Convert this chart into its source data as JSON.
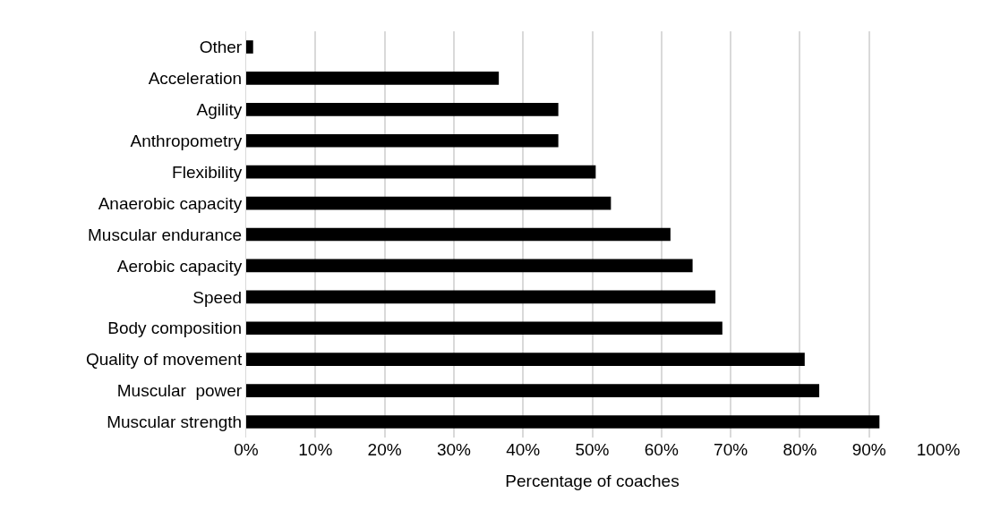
{
  "chart_data": {
    "type": "bar",
    "orientation": "horizontal",
    "xlabel": "Percentage of coaches",
    "categories": [
      "Other",
      "Acceleration",
      "Agility",
      "Anthropometry",
      "Flexibility",
      "Anaerobic capacity",
      "Muscular endurance",
      "Aerobic capacity",
      "Speed",
      "Body composition",
      "Quality of movement",
      "Muscular  power",
      "Muscular strength"
    ],
    "values": [
      1,
      36.5,
      45.1,
      45.1,
      50.5,
      52.7,
      61.3,
      64.5,
      67.8,
      68.8,
      80.7,
      82.8,
      91.5
    ],
    "color": "#000000",
    "xlim": [
      0,
      100
    ],
    "xticks": [
      {
        "value": 0,
        "label": "0%"
      },
      {
        "value": 10,
        "label": "10%"
      },
      {
        "value": 20,
        "label": "20%"
      },
      {
        "value": 30,
        "label": "30%"
      },
      {
        "value": 40,
        "label": "40%"
      },
      {
        "value": 50,
        "label": "50%"
      },
      {
        "value": 60,
        "label": "60%"
      },
      {
        "value": 70,
        "label": "70%"
      },
      {
        "value": 80,
        "label": "80%"
      },
      {
        "value": 90,
        "label": "90%"
      },
      {
        "value": 100,
        "label": "100%"
      }
    ],
    "grid": "x"
  }
}
